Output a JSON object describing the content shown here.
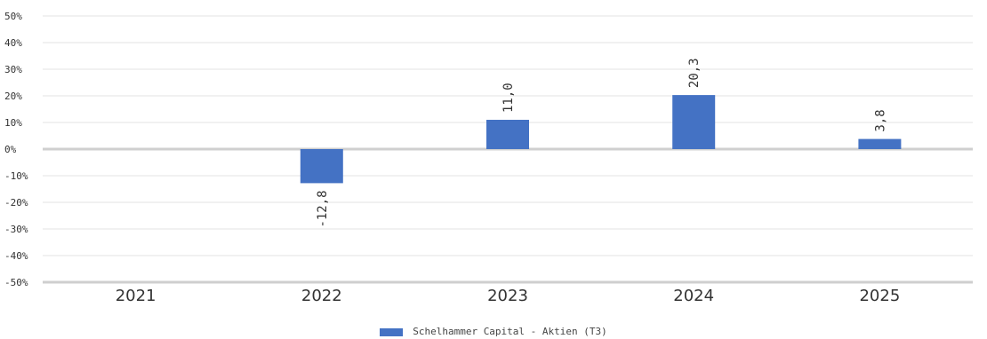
{
  "colors": {
    "bar": "#4472c4",
    "grid": "#e3e3e3",
    "zero_line": "#cfcfcf",
    "axis": "#cfcfcf",
    "text": "#333333"
  },
  "legend": {
    "label": "Schelhammer Capital - Aktien (T3)",
    "position": "bottom-center"
  },
  "chart_data": {
    "type": "bar",
    "categories": [
      "2021",
      "2022",
      "2023",
      "2024",
      "2025"
    ],
    "series": [
      {
        "name": "Schelhammer Capital - Aktien (T3)",
        "values": [
          null,
          -12.8,
          11.0,
          20.3,
          3.8
        ],
        "labels": [
          "",
          "-12,8",
          "11,0",
          "20,3",
          "3,8"
        ]
      }
    ],
    "y_ticks": [
      50,
      40,
      30,
      20,
      10,
      0,
      -10,
      -20,
      -30,
      -40,
      -50
    ],
    "y_tick_labels": [
      "50%",
      "40%",
      "30%",
      "20%",
      "10%",
      "0%",
      "-10%",
      "-20%",
      "-30%",
      "-40%",
      "-50%"
    ],
    "ylim": [
      -50,
      50
    ],
    "grid": true,
    "title": "",
    "xlabel": "",
    "ylabel": ""
  }
}
